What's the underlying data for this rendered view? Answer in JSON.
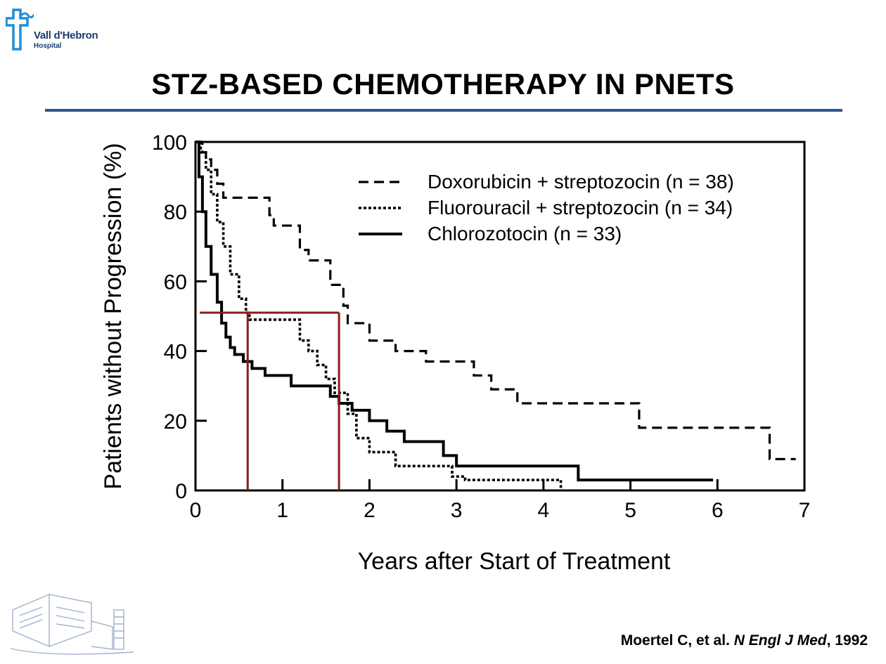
{
  "header": {
    "logo_name": "Vall d'Hebron",
    "logo_sub": "Hospital",
    "title": "STZ-BASED CHEMOTHERAPY IN PNETS"
  },
  "citation": {
    "authors": "Moertel C, et al.",
    "journal": "N Engl J Med",
    "year": ", 1992"
  },
  "colors": {
    "rule": "#2b5594",
    "median_lines": "#8b1a1a",
    "logo": "#1a3c6e"
  },
  "chart_data": {
    "type": "line",
    "title": "",
    "xlabel": "Years after Start of Treatment",
    "ylabel": "Patients without Progression (%)",
    "xlim": [
      0,
      7
    ],
    "ylim": [
      0,
      100
    ],
    "xticks": [
      "0",
      "1",
      "2",
      "3",
      "4",
      "5",
      "6",
      "7"
    ],
    "yticks": [
      "0",
      "20",
      "40",
      "60",
      "80",
      "100"
    ],
    "legend_position": "top-right",
    "series": [
      {
        "name": "Doxorubicin + streptozocin (n = 38)",
        "style": "dashed",
        "x": [
          0.0,
          0.08,
          0.12,
          0.18,
          0.25,
          0.32,
          0.7,
          0.85,
          0.9,
          1.2,
          1.3,
          1.55,
          1.7,
          1.75,
          2.0,
          2.3,
          2.65,
          3.2,
          3.4,
          3.7,
          4.1,
          5.1,
          6.6,
          6.9
        ],
        "y": [
          100,
          97,
          95,
          92,
          88,
          84,
          84,
          79,
          76,
          69,
          66,
          59,
          53,
          48,
          43,
          40,
          37,
          33,
          29,
          25,
          25,
          18,
          9,
          9
        ]
      },
      {
        "name": "Fluorouracil + streptozocin (n = 34)",
        "style": "dotted",
        "x": [
          0.0,
          0.06,
          0.12,
          0.18,
          0.25,
          0.32,
          0.4,
          0.5,
          0.58,
          0.62,
          1.1,
          1.2,
          1.3,
          1.4,
          1.5,
          1.6,
          1.75,
          1.85,
          2.0,
          2.3,
          2.95,
          3.1,
          4.2
        ],
        "y": [
          100,
          97,
          92,
          85,
          77,
          70,
          62,
          55,
          51,
          49,
          49,
          43,
          40,
          36,
          32,
          28,
          22,
          15,
          11,
          7,
          4,
          3,
          0
        ]
      },
      {
        "name": "Chlorozotocin (n = 33)",
        "style": "solid",
        "x": [
          0.0,
          0.04,
          0.08,
          0.12,
          0.18,
          0.25,
          0.3,
          0.35,
          0.4,
          0.45,
          0.55,
          0.65,
          0.8,
          1.1,
          1.55,
          1.65,
          1.8,
          2.0,
          2.2,
          2.4,
          2.85,
          3.0,
          4.4,
          4.6,
          5.95
        ],
        "y": [
          100,
          90,
          80,
          70,
          62,
          54,
          48,
          44,
          41,
          39,
          37,
          35,
          33,
          30,
          27,
          25,
          23,
          20,
          17,
          14,
          10,
          7,
          3,
          3,
          3
        ]
      }
    ],
    "median_markers": {
      "y": 51,
      "x": [
        0.6,
        1.65
      ]
    }
  }
}
